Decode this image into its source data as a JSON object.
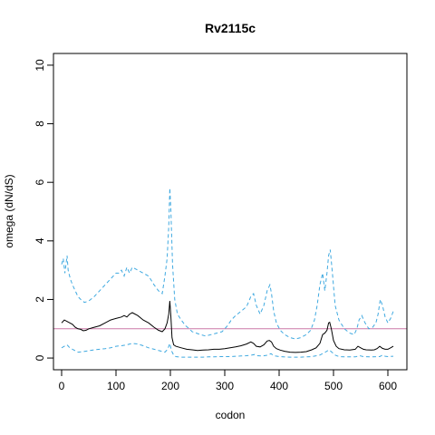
{
  "chart_data": {
    "type": "line",
    "title": "Rv2115c",
    "xlabel": "codon",
    "ylabel": "omega (dN/dS)",
    "xlim": [
      -15,
      635
    ],
    "ylim": [
      -0.4,
      10.4
    ],
    "xticks": [
      0,
      100,
      200,
      300,
      400,
      500,
      600
    ],
    "yticks": [
      0,
      2,
      4,
      6,
      8,
      10
    ],
    "reference_line": {
      "y": 1,
      "color": "#cc79a7"
    },
    "grid": false,
    "legend": "none",
    "colors": {
      "mean": "#000000",
      "interval": "#3fa9e0"
    },
    "series": [
      {
        "key": "upper",
        "style": "dashed",
        "color": "#3fa9e0",
        "x": [
          0,
          3,
          6,
          10,
          12,
          16,
          20,
          25,
          30,
          35,
          42,
          50,
          60,
          70,
          80,
          90,
          100,
          105,
          110,
          115,
          120,
          125,
          130,
          140,
          150,
          160,
          170,
          178,
          185,
          190,
          194,
          197,
          199,
          201,
          204,
          208,
          213,
          220,
          228,
          235,
          240,
          248,
          255,
          265,
          275,
          285,
          295,
          300,
          305,
          312,
          320,
          330,
          340,
          348,
          353,
          358,
          365,
          372,
          378,
          383,
          386,
          390,
          395,
          402,
          410,
          420,
          430,
          440,
          450,
          458,
          465,
          470,
          475,
          480,
          484,
          488,
          491,
          494,
          498,
          503,
          510,
          520,
          530,
          538,
          543,
          547,
          552,
          558,
          565,
          572,
          578,
          582,
          586,
          590,
          595,
          600,
          605,
          610
        ],
        "y": [
          3.2,
          3.4,
          2.9,
          3.5,
          3.0,
          2.7,
          2.5,
          2.3,
          2.1,
          2.0,
          1.9,
          1.95,
          2.1,
          2.3,
          2.5,
          2.7,
          2.9,
          2.9,
          3.0,
          2.8,
          3.1,
          2.9,
          3.1,
          3.0,
          2.9,
          2.8,
          2.5,
          2.3,
          2.2,
          2.8,
          3.4,
          4.5,
          5.8,
          5.0,
          3.2,
          2.0,
          1.5,
          1.3,
          1.1,
          1.0,
          0.9,
          0.85,
          0.8,
          0.75,
          0.8,
          0.85,
          0.9,
          1.0,
          1.1,
          1.3,
          1.45,
          1.6,
          1.75,
          2.1,
          2.2,
          1.8,
          1.5,
          1.8,
          2.3,
          2.5,
          2.2,
          1.6,
          1.2,
          0.95,
          0.8,
          0.7,
          0.65,
          0.7,
          0.8,
          0.95,
          1.3,
          1.8,
          2.5,
          2.9,
          2.3,
          2.9,
          3.5,
          3.7,
          2.9,
          1.8,
          1.3,
          1.0,
          0.85,
          0.8,
          1.0,
          1.3,
          1.45,
          1.2,
          1.0,
          1.05,
          1.2,
          1.5,
          2.0,
          1.8,
          1.4,
          1.2,
          1.35,
          1.6
        ]
      },
      {
        "key": "mean",
        "style": "solid",
        "color": "#000000",
        "x": [
          0,
          5,
          10,
          15,
          20,
          25,
          30,
          35,
          40,
          45,
          50,
          60,
          70,
          80,
          90,
          100,
          110,
          115,
          120,
          125,
          130,
          140,
          150,
          160,
          170,
          178,
          185,
          190,
          194,
          197,
          199,
          201,
          203,
          206,
          210,
          220,
          230,
          240,
          250,
          260,
          270,
          280,
          290,
          300,
          310,
          320,
          330,
          340,
          348,
          353,
          358,
          365,
          372,
          378,
          382,
          386,
          390,
          395,
          402,
          410,
          420,
          430,
          440,
          450,
          460,
          468,
          475,
          480,
          484,
          488,
          491,
          493,
          496,
          500,
          505,
          510,
          520,
          530,
          540,
          545,
          550,
          555,
          560,
          570,
          575,
          580,
          585,
          590,
          595,
          600,
          605,
          610
        ],
        "y": [
          1.2,
          1.3,
          1.25,
          1.2,
          1.15,
          1.05,
          1.0,
          0.98,
          0.93,
          0.95,
          1.0,
          1.05,
          1.1,
          1.2,
          1.3,
          1.35,
          1.4,
          1.45,
          1.4,
          1.5,
          1.55,
          1.45,
          1.3,
          1.2,
          1.05,
          0.95,
          0.9,
          1.0,
          1.2,
          1.5,
          1.95,
          1.4,
          0.7,
          0.45,
          0.4,
          0.35,
          0.3,
          0.28,
          0.26,
          0.27,
          0.28,
          0.3,
          0.3,
          0.32,
          0.35,
          0.38,
          0.42,
          0.48,
          0.55,
          0.5,
          0.4,
          0.38,
          0.45,
          0.58,
          0.6,
          0.55,
          0.4,
          0.32,
          0.27,
          0.23,
          0.2,
          0.19,
          0.2,
          0.22,
          0.28,
          0.35,
          0.5,
          0.8,
          0.85,
          0.95,
          1.2,
          1.22,
          1.0,
          0.6,
          0.4,
          0.32,
          0.28,
          0.27,
          0.3,
          0.4,
          0.35,
          0.3,
          0.28,
          0.27,
          0.28,
          0.32,
          0.4,
          0.33,
          0.3,
          0.3,
          0.35,
          0.4
        ]
      },
      {
        "key": "lower",
        "style": "dashed",
        "color": "#3fa9e0",
        "x": [
          0,
          5,
          10,
          15,
          20,
          25,
          30,
          40,
          50,
          60,
          70,
          80,
          90,
          100,
          110,
          120,
          130,
          140,
          150,
          160,
          170,
          180,
          190,
          195,
          199,
          202,
          206,
          210,
          220,
          230,
          240,
          250,
          260,
          270,
          280,
          290,
          300,
          310,
          320,
          330,
          340,
          350,
          355,
          360,
          370,
          380,
          385,
          390,
          400,
          420,
          440,
          460,
          475,
          485,
          492,
          497,
          503,
          510,
          520,
          540,
          548,
          555,
          570,
          585,
          590,
          595,
          600,
          610
        ],
        "y": [
          0.35,
          0.4,
          0.45,
          0.35,
          0.3,
          0.25,
          0.2,
          0.22,
          0.25,
          0.28,
          0.3,
          0.32,
          0.35,
          0.4,
          0.42,
          0.45,
          0.5,
          0.48,
          0.42,
          0.35,
          0.3,
          0.25,
          0.2,
          0.3,
          0.5,
          0.25,
          0.1,
          0.05,
          0.03,
          0.03,
          0.03,
          0.03,
          0.03,
          0.04,
          0.04,
          0.05,
          0.05,
          0.05,
          0.06,
          0.07,
          0.08,
          0.1,
          0.12,
          0.08,
          0.07,
          0.1,
          0.15,
          0.08,
          0.05,
          0.03,
          0.03,
          0.05,
          0.1,
          0.2,
          0.28,
          0.2,
          0.1,
          0.05,
          0.04,
          0.04,
          0.08,
          0.05,
          0.04,
          0.05,
          0.1,
          0.06,
          0.05,
          0.06
        ]
      }
    ]
  }
}
